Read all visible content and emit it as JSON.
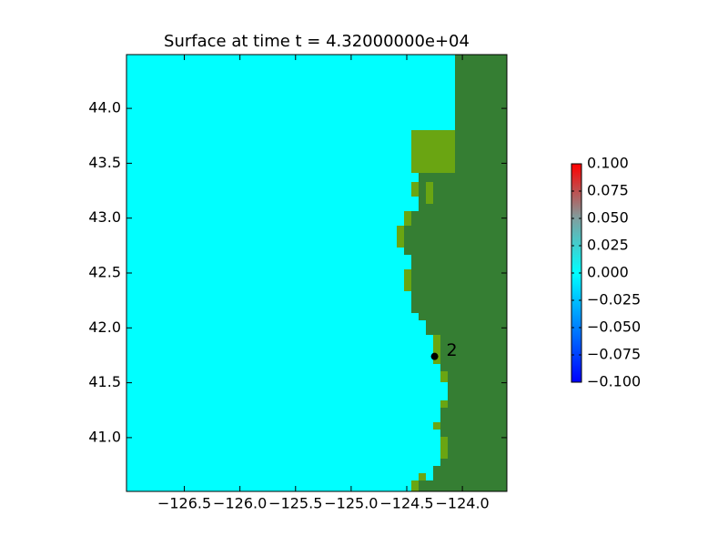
{
  "chart_data": {
    "type": "heatmap",
    "title": "Surface at time t = 4.32000000e+04",
    "xlim": [
      -127.02,
      -123.6
    ],
    "ylim": [
      40.51,
      44.49
    ],
    "xticks": [
      {
        "value": -126.5,
        "label": "−126.5"
      },
      {
        "value": -126.0,
        "label": "−126.0"
      },
      {
        "value": -125.5,
        "label": "−125.5"
      },
      {
        "value": -125.0,
        "label": "−125.0"
      },
      {
        "value": -124.5,
        "label": "−124.5"
      },
      {
        "value": -124.0,
        "label": "−124.0"
      }
    ],
    "yticks": [
      {
        "value": 44.0,
        "label": "44.0"
      },
      43.5,
      {
        "value": 43.0,
        "label": "43.0"
      },
      42.5,
      {
        "value": 42.0,
        "label": "42.0"
      },
      41.5,
      {
        "value": 41.0,
        "label": "41.0"
      }
    ],
    "gauges": [
      {
        "label": "2",
        "x": -124.25,
        "y": 41.74
      }
    ],
    "colorbar": {
      "lim": [
        -0.1,
        0.1
      ],
      "colors": [
        "#0000ff",
        "#0080ff",
        "#00ffff",
        "#7f9f9f",
        "#ff0000"
      ],
      "ticks": [
        {
          "value": 0.1,
          "label": "0.100"
        },
        {
          "value": 0.075,
          "label": "0.075"
        },
        {
          "value": 0.05,
          "label": "0.050"
        },
        {
          "value": 0.025,
          "label": "0.025"
        },
        {
          "value": 0,
          "label": "0.000"
        },
        {
          "value": -0.025,
          "label": "−0.025"
        },
        {
          "value": -0.05,
          "label": "−0.050"
        },
        {
          "value": -0.075,
          "label": "−0.075"
        },
        {
          "value": -0.1,
          "label": "−0.100"
        }
      ]
    }
  }
}
